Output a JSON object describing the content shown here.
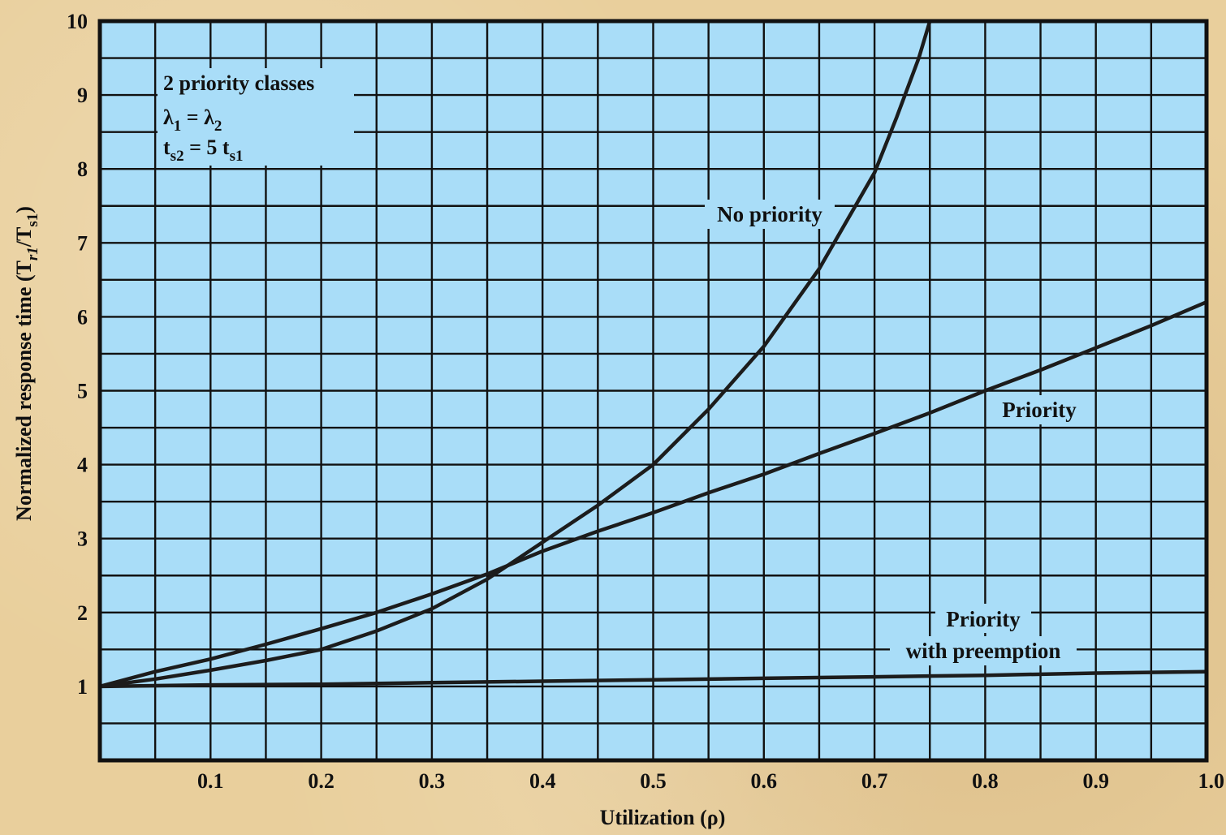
{
  "chart_data": {
    "type": "line",
    "xlabel": "Utilization (ρ)",
    "ylabel": "Normalized response time (T",
    "ylabel_sub1": "r1",
    "ylabel_mid": "/T",
    "ylabel_sub2": "s1",
    "ylabel_end": ")",
    "xlim": [
      0,
      1.0
    ],
    "ylim": [
      0,
      10
    ],
    "x_ticks": [
      "0.1",
      "0.2",
      "0.3",
      "0.4",
      "0.5",
      "0.6",
      "0.7",
      "0.8",
      "0.9",
      "1.0"
    ],
    "y_ticks": [
      "1",
      "2",
      "3",
      "4",
      "5",
      "6",
      "7",
      "8",
      "9",
      "10"
    ],
    "grid": true,
    "annotation": {
      "line1": "2 priority classes",
      "line2_a": "λ",
      "line2_sub_a": "1",
      "line2_mid": " = λ",
      "line2_sub_b": "2",
      "line3_a": "t",
      "line3_sub_a": "s2",
      "line3_mid": " = 5 ",
      "line3_glyph": "",
      "line3_b": " t",
      "line3_sub_b": "s1"
    },
    "series": [
      {
        "name": "No priority",
        "x": [
          0,
          0.05,
          0.1,
          0.15,
          0.2,
          0.25,
          0.3,
          0.35,
          0.4,
          0.45,
          0.5,
          0.55,
          0.6,
          0.65,
          0.7,
          0.72,
          0.74,
          0.75
        ],
        "y": [
          1,
          1.1,
          1.22,
          1.35,
          1.5,
          1.75,
          2.05,
          2.45,
          2.95,
          3.45,
          4.0,
          4.75,
          5.6,
          6.65,
          7.95,
          8.7,
          9.5,
          10.0
        ]
      },
      {
        "name": "Priority",
        "x": [
          0,
          0.05,
          0.1,
          0.15,
          0.2,
          0.25,
          0.3,
          0.35,
          0.4,
          0.45,
          0.5,
          0.55,
          0.6,
          0.65,
          0.7,
          0.75,
          0.8,
          0.85,
          0.9,
          0.95,
          1.0
        ],
        "y": [
          1,
          1.2,
          1.37,
          1.57,
          1.78,
          2.0,
          2.25,
          2.52,
          2.83,
          3.1,
          3.35,
          3.62,
          3.87,
          4.15,
          4.42,
          4.7,
          5.0,
          5.28,
          5.58,
          5.88,
          6.2
        ]
      },
      {
        "name_line1": "Priority",
        "name_line2": "with preemption",
        "x": [
          0,
          0.1,
          0.2,
          0.3,
          0.4,
          0.5,
          0.6,
          0.7,
          0.8,
          0.9,
          1.0
        ],
        "y": [
          1,
          1.02,
          1.03,
          1.05,
          1.07,
          1.09,
          1.11,
          1.13,
          1.15,
          1.18,
          1.2
        ]
      }
    ]
  }
}
